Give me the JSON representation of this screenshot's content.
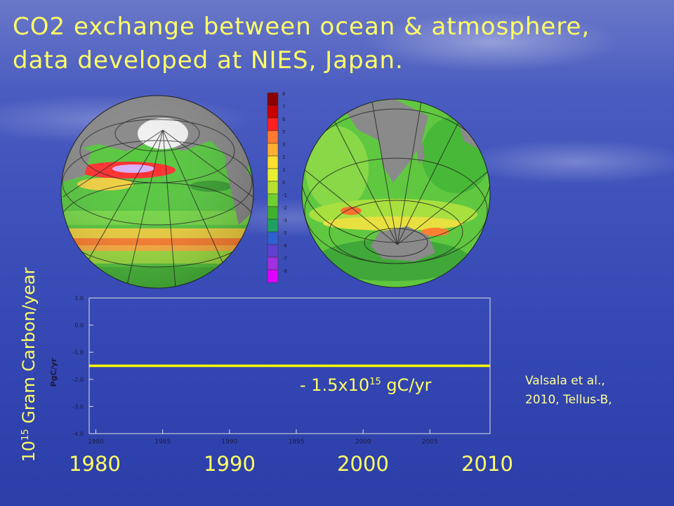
{
  "title": {
    "line1": "CO2 exchange between ocean & atmosphere,",
    "line2": "data developed at NIES, Japan."
  },
  "outer_ylabel": {
    "prefix": "10",
    "exponent": "15",
    "suffix": " Gram Carbon/year"
  },
  "annotation": {
    "prefix": "- 1.5x10",
    "exponent": "15",
    "suffix": " gC/yr"
  },
  "citation": {
    "line1": "Valsala et al.,",
    "line2": "2010, Tellus-B,"
  },
  "big_years": [
    "1980",
    "1990",
    "2000",
    "2010"
  ],
  "colorbar": {
    "labels": [
      "8",
      "7",
      "6",
      "5",
      "3",
      "2",
      "1",
      "0",
      "-1",
      "-2",
      "-3",
      "-5",
      "-6",
      "-7",
      "-8"
    ],
    "colors": [
      "#8b0000",
      "#c80000",
      "#ff2020",
      "#ff7a30",
      "#ffb030",
      "#ffe030",
      "#e8f030",
      "#b8e030",
      "#70d030",
      "#3fb030",
      "#20a060",
      "#3060d0",
      "#6040d0",
      "#a030e0",
      "#e000ff"
    ]
  },
  "colors": {
    "accent_text": "#ffff66",
    "line": "#ffff00",
    "land": "#8a8a8a"
  },
  "chart_data": {
    "type": "line",
    "ylabel": "PgC/yr",
    "xlim": [
      1979.5,
      2009.5
    ],
    "ylim": [
      -4.0,
      1.0
    ],
    "x_ticks": [
      1980,
      1985,
      1990,
      1995,
      2000,
      2005
    ],
    "y_ticks": [
      1.0,
      0.0,
      -1.0,
      -2.0,
      -3.0,
      -4.0
    ],
    "y_tick_labels": [
      "1.0",
      "0.0",
      "-1.0",
      "-2.0",
      "-3.0",
      "-4.0"
    ],
    "grid": false,
    "series": [
      {
        "x": [
          1979.5,
          2009.5
        ],
        "y": [
          -1.5,
          -1.5
        ]
      }
    ]
  }
}
